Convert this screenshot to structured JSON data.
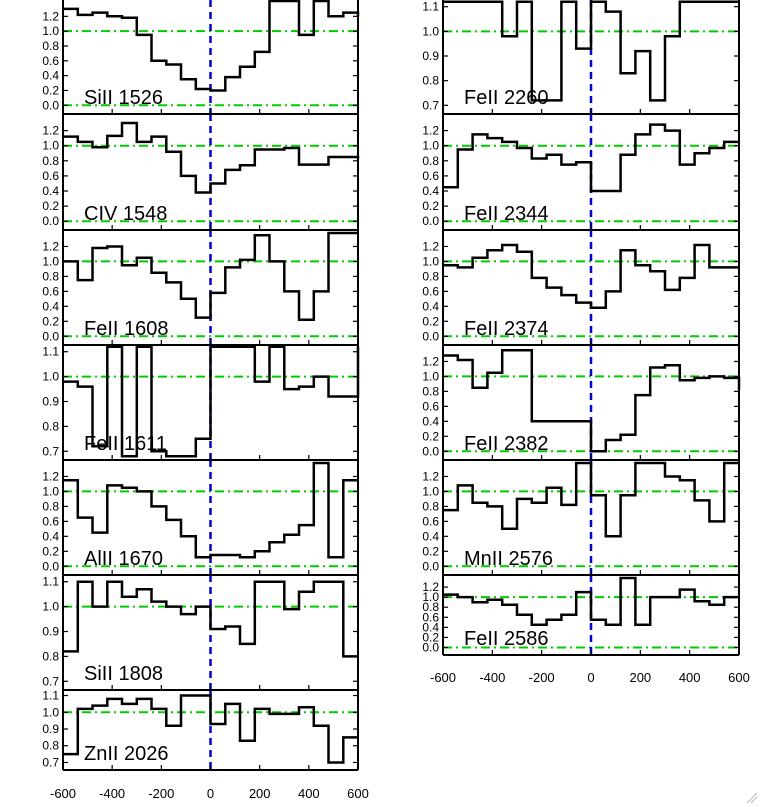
{
  "chart_data": {
    "type": "line",
    "title": "",
    "xlabel": "",
    "ylabel": "",
    "x_ticks": [
      -600,
      -400,
      -200,
      0,
      200,
      400,
      600
    ],
    "xlim": [
      -600,
      600
    ],
    "colors": {
      "spectrum": "#000000",
      "continuum": "#00cc00",
      "zero_velocity": "#0000cc"
    },
    "reference_lines": {
      "continuum": 1.0,
      "zero": 0.0,
      "velocity": 0
    },
    "panels": [
      {
        "column": "left",
        "label": "SiII 1526",
        "ylim": [
          -0.05,
          1.38
        ],
        "ticks": [
          {
            "v": 0.0,
            "t": "0.0"
          },
          {
            "v": 0.2,
            "t": "0.2"
          },
          {
            "v": 0.4,
            "t": "0.4"
          },
          {
            "v": 0.6,
            "t": "0.6"
          },
          {
            "v": 0.8,
            "t": "0.8"
          },
          {
            "v": 1.0,
            "t": "1.0"
          },
          {
            "v": 1.2,
            "t": "1.2"
          }
        ],
        "ref_levels": [
          1.0,
          0.0
        ],
        "x": [
          -600,
          -540,
          -480,
          -420,
          -360,
          -300,
          -240,
          -180,
          -120,
          -60,
          0,
          60,
          120,
          180,
          240,
          300,
          360,
          420,
          480,
          540,
          600
        ],
        "y": [
          1.3,
          1.22,
          1.25,
          1.2,
          1.18,
          0.95,
          0.6,
          0.55,
          0.35,
          0.22,
          0.2,
          0.38,
          0.52,
          0.72,
          1.45,
          1.45,
          0.95,
          1.45,
          1.2,
          1.25,
          1.2
        ]
      },
      {
        "column": "left",
        "label": "CIV 1548",
        "ylim": [
          -0.05,
          1.38
        ],
        "ticks": [
          {
            "v": 0.0,
            "t": "0.0"
          },
          {
            "v": 0.2,
            "t": "0.2"
          },
          {
            "v": 0.4,
            "t": "0.4"
          },
          {
            "v": 0.6,
            "t": "0.6"
          },
          {
            "v": 0.8,
            "t": "0.8"
          },
          {
            "v": 1.0,
            "t": "1.0"
          },
          {
            "v": 1.2,
            "t": "1.2"
          }
        ],
        "ref_levels": [
          1.0,
          0.0
        ],
        "x": [
          -600,
          -540,
          -480,
          -420,
          -360,
          -300,
          -240,
          -180,
          -120,
          -60,
          0,
          60,
          120,
          180,
          240,
          300,
          360,
          420,
          480,
          540,
          600
        ],
        "y": [
          1.12,
          1.05,
          0.98,
          1.13,
          1.3,
          1.05,
          1.12,
          0.92,
          0.6,
          0.38,
          0.5,
          0.68,
          0.74,
          0.95,
          0.95,
          0.97,
          0.75,
          0.75,
          0.85,
          0.85,
          0.82
        ]
      },
      {
        "column": "left",
        "label": "FeII 1608",
        "ylim": [
          -0.05,
          1.38
        ],
        "ticks": [
          {
            "v": 0.0,
            "t": "0.0"
          },
          {
            "v": 0.2,
            "t": "0.2"
          },
          {
            "v": 0.4,
            "t": "0.4"
          },
          {
            "v": 0.6,
            "t": "0.6"
          },
          {
            "v": 0.8,
            "t": "0.8"
          },
          {
            "v": 1.0,
            "t": "1.0"
          },
          {
            "v": 1.2,
            "t": "1.2"
          }
        ],
        "ref_levels": [
          1.0,
          0.0
        ],
        "x": [
          -600,
          -540,
          -480,
          -420,
          -360,
          -300,
          -240,
          -180,
          -120,
          -60,
          0,
          60,
          120,
          180,
          240,
          300,
          360,
          420,
          480,
          540,
          600
        ],
        "y": [
          1.0,
          0.75,
          1.18,
          1.2,
          0.95,
          1.05,
          0.85,
          0.72,
          0.5,
          0.25,
          0.58,
          0.92,
          1.02,
          1.35,
          1.0,
          0.6,
          0.22,
          0.6,
          1.38,
          1.38,
          1.38
        ]
      },
      {
        "column": "left",
        "label": "FeII 1611",
        "ylim": [
          0.685,
          1.115
        ],
        "ticks": [
          {
            "v": 0.7,
            "t": "0.7"
          },
          {
            "v": 0.8,
            "t": "0.8"
          },
          {
            "v": 0.9,
            "t": "0.9"
          },
          {
            "v": 1.0,
            "t": "1.0"
          },
          {
            "v": 1.1,
            "t": "1.1"
          }
        ],
        "ref_levels": [
          1.0
        ],
        "x": [
          -600,
          -540,
          -480,
          -420,
          -360,
          -300,
          -240,
          -180,
          -120,
          -60,
          0,
          60,
          120,
          180,
          240,
          300,
          360,
          420,
          480,
          540,
          600
        ],
        "y": [
          0.98,
          0.96,
          0.72,
          1.12,
          0.68,
          1.12,
          0.7,
          0.68,
          0.68,
          0.75,
          1.12,
          1.12,
          1.12,
          0.98,
          1.12,
          0.95,
          0.96,
          1.0,
          0.92,
          0.92,
          1.12
        ]
      },
      {
        "column": "left",
        "label": "AlII 1670",
        "ylim": [
          -0.05,
          1.38
        ],
        "ticks": [
          {
            "v": 0.0,
            "t": "0.0"
          },
          {
            "v": 0.2,
            "t": "0.2"
          },
          {
            "v": 0.4,
            "t": "0.4"
          },
          {
            "v": 0.6,
            "t": "0.6"
          },
          {
            "v": 0.8,
            "t": "0.8"
          },
          {
            "v": 1.0,
            "t": "1.0"
          },
          {
            "v": 1.2,
            "t": "1.2"
          }
        ],
        "ref_levels": [
          1.0,
          0.0
        ],
        "x": [
          -600,
          -540,
          -480,
          -420,
          -360,
          -300,
          -240,
          -180,
          -120,
          -60,
          0,
          60,
          120,
          180,
          240,
          300,
          360,
          420,
          480,
          540,
          600
        ],
        "y": [
          1.15,
          0.65,
          0.45,
          1.08,
          1.05,
          1.0,
          0.8,
          0.62,
          0.4,
          0.12,
          0.15,
          0.15,
          0.12,
          0.2,
          0.32,
          0.42,
          0.55,
          1.38,
          0.12,
          1.15,
          1.15
        ]
      },
      {
        "column": "left",
        "label": "SiII 1808",
        "ylim": [
          0.685,
          1.115
        ],
        "ticks": [
          {
            "v": 0.7,
            "t": "0.7"
          },
          {
            "v": 0.8,
            "t": "0.8"
          },
          {
            "v": 0.9,
            "t": "0.9"
          },
          {
            "v": 1.0,
            "t": "1.0"
          },
          {
            "v": 1.1,
            "t": "1.1"
          }
        ],
        "ref_levels": [
          1.0
        ],
        "x": [
          -600,
          -540,
          -480,
          -420,
          -360,
          -300,
          -240,
          -180,
          -120,
          -60,
          0,
          60,
          120,
          180,
          240,
          300,
          360,
          420,
          480,
          540,
          600
        ],
        "y": [
          0.82,
          1.1,
          1.0,
          1.1,
          1.04,
          1.07,
          1.02,
          1.0,
          0.97,
          1.0,
          0.91,
          0.92,
          0.85,
          1.1,
          1.1,
          0.99,
          1.06,
          1.1,
          1.1,
          0.8,
          0.8
        ]
      },
      {
        "column": "left",
        "label": "ZnII 2026",
        "ylim": [
          0.685,
          1.115
        ],
        "ticks": [
          {
            "v": 0.7,
            "t": "0.7"
          },
          {
            "v": 0.8,
            "t": "0.8"
          },
          {
            "v": 0.9,
            "t": "0.9"
          },
          {
            "v": 1.0,
            "t": "1.0"
          },
          {
            "v": 1.1,
            "t": "1.1"
          }
        ],
        "ref_levels": [
          1.0
        ],
        "x": [
          -600,
          -540,
          -480,
          -420,
          -360,
          -300,
          -240,
          -180,
          -120,
          -60,
          0,
          60,
          120,
          180,
          240,
          300,
          360,
          420,
          480,
          540,
          600
        ],
        "y": [
          0.75,
          1.02,
          1.04,
          1.08,
          1.05,
          1.08,
          1.02,
          0.92,
          1.1,
          1.1,
          0.93,
          1.05,
          0.83,
          1.02,
          0.99,
          0.99,
          1.03,
          0.92,
          0.7,
          0.85,
          0.85
        ]
      },
      {
        "column": "right",
        "label": "FeII 2260",
        "ylim": [
          0.685,
          1.115
        ],
        "ticks": [
          {
            "v": 0.7,
            "t": "0.7"
          },
          {
            "v": 0.8,
            "t": "0.8"
          },
          {
            "v": 0.9,
            "t": "0.9"
          },
          {
            "v": 1.0,
            "t": "1.0"
          },
          {
            "v": 1.1,
            "t": "1.1"
          }
        ],
        "ref_levels": [
          1.0
        ],
        "x": [
          -600,
          -540,
          -480,
          -420,
          -360,
          -300,
          -240,
          -180,
          -120,
          -60,
          0,
          60,
          120,
          180,
          240,
          300,
          360,
          420,
          480,
          540,
          600
        ],
        "y": [
          1.12,
          1.12,
          1.12,
          1.12,
          0.98,
          1.12,
          0.72,
          0.72,
          1.12,
          0.93,
          1.12,
          1.08,
          0.83,
          0.92,
          0.72,
          0.98,
          1.12,
          1.12,
          1.12,
          1.12,
          1.12
        ]
      },
      {
        "column": "right",
        "label": "FeII 2344",
        "ylim": [
          -0.05,
          1.38
        ],
        "ticks": [
          {
            "v": 0.0,
            "t": "0.0"
          },
          {
            "v": 0.2,
            "t": "0.2"
          },
          {
            "v": 0.4,
            "t": "0.4"
          },
          {
            "v": 0.6,
            "t": "0.6"
          },
          {
            "v": 0.8,
            "t": "0.8"
          },
          {
            "v": 1.0,
            "t": "1.0"
          },
          {
            "v": 1.2,
            "t": "1.2"
          }
        ],
        "ref_levels": [
          1.0,
          0.0
        ],
        "x": [
          -600,
          -540,
          -480,
          -420,
          -360,
          -300,
          -240,
          -180,
          -120,
          -60,
          0,
          60,
          120,
          180,
          240,
          300,
          360,
          420,
          480,
          540,
          600
        ],
        "y": [
          0.45,
          0.95,
          1.15,
          1.1,
          1.05,
          0.97,
          0.83,
          0.88,
          0.75,
          0.78,
          0.4,
          0.4,
          0.88,
          1.15,
          1.28,
          1.2,
          0.75,
          0.9,
          0.97,
          1.05,
          1.05
        ]
      },
      {
        "column": "right",
        "label": "FeII 2374",
        "ylim": [
          -0.05,
          1.38
        ],
        "ticks": [
          {
            "v": 0.0,
            "t": "0.0"
          },
          {
            "v": 0.2,
            "t": "0.2"
          },
          {
            "v": 0.4,
            "t": "0.4"
          },
          {
            "v": 0.6,
            "t": "0.6"
          },
          {
            "v": 0.8,
            "t": "0.8"
          },
          {
            "v": 1.0,
            "t": "1.0"
          },
          {
            "v": 1.2,
            "t": "1.2"
          }
        ],
        "ref_levels": [
          1.0,
          0.0
        ],
        "x": [
          -600,
          -540,
          -480,
          -420,
          -360,
          -300,
          -240,
          -180,
          -120,
          -60,
          0,
          60,
          120,
          180,
          240,
          300,
          360,
          420,
          480,
          540,
          600
        ],
        "y": [
          0.95,
          0.92,
          1.05,
          1.15,
          1.22,
          1.13,
          0.78,
          0.65,
          0.55,
          0.45,
          0.38,
          0.6,
          1.15,
          0.95,
          0.87,
          0.62,
          0.78,
          1.22,
          0.92,
          0.92,
          0.92
        ]
      },
      {
        "column": "right",
        "label": "FeII 2382",
        "ylim": [
          -0.05,
          1.38
        ],
        "ticks": [
          {
            "v": 0.0,
            "t": "0.0"
          },
          {
            "v": 0.2,
            "t": "0.2"
          },
          {
            "v": 0.4,
            "t": "0.4"
          },
          {
            "v": 0.6,
            "t": "0.6"
          },
          {
            "v": 0.8,
            "t": "0.8"
          },
          {
            "v": 1.0,
            "t": "1.0"
          },
          {
            "v": 1.2,
            "t": "1.2"
          }
        ],
        "ref_levels": [
          1.0,
          0.0
        ],
        "x": [
          -600,
          -540,
          -480,
          -420,
          -360,
          -300,
          -240,
          -180,
          -120,
          -60,
          0,
          60,
          120,
          180,
          240,
          300,
          360,
          420,
          480,
          540,
          600
        ],
        "y": [
          1.28,
          1.22,
          0.85,
          1.05,
          1.35,
          1.35,
          0.4,
          0.4,
          0.4,
          0.4,
          0.0,
          0.15,
          0.22,
          0.75,
          1.12,
          1.15,
          0.95,
          0.98,
          1.0,
          0.98,
          0.82
        ]
      },
      {
        "column": "right",
        "label": "MnII 2576",
        "ylim": [
          -0.05,
          1.38
        ],
        "ticks": [
          {
            "v": 0.0,
            "t": "0.0"
          },
          {
            "v": 0.2,
            "t": "0.2"
          },
          {
            "v": 0.4,
            "t": "0.4"
          },
          {
            "v": 0.6,
            "t": "0.6"
          },
          {
            "v": 0.8,
            "t": "0.8"
          },
          {
            "v": 1.0,
            "t": "1.0"
          },
          {
            "v": 1.2,
            "t": "1.2"
          }
        ],
        "ref_levels": [
          1.0,
          0.0
        ],
        "x": [
          -600,
          -540,
          -480,
          -420,
          -360,
          -300,
          -240,
          -180,
          -120,
          -60,
          0,
          60,
          120,
          180,
          240,
          300,
          360,
          420,
          480,
          540,
          600
        ],
        "y": [
          0.75,
          1.08,
          0.85,
          0.8,
          0.5,
          0.9,
          0.85,
          1.05,
          0.82,
          1.38,
          0.95,
          0.4,
          0.95,
          1.38,
          1.38,
          1.2,
          1.15,
          0.88,
          0.6,
          1.38,
          1.38
        ]
      },
      {
        "column": "right",
        "label": "FeII 2586",
        "ylim": [
          -0.05,
          1.38
        ],
        "ticks": [
          {
            "v": 0.0,
            "t": "0.0"
          },
          {
            "v": 0.2,
            "t": "0.2"
          },
          {
            "v": 0.4,
            "t": "0.4"
          },
          {
            "v": 0.6,
            "t": "0.6"
          },
          {
            "v": 0.8,
            "t": "0.8"
          },
          {
            "v": 1.0,
            "t": "1.0"
          },
          {
            "v": 1.2,
            "t": "1.2"
          }
        ],
        "ref_levels": [
          1.0,
          0.0
        ],
        "x": [
          -600,
          -540,
          -480,
          -420,
          -360,
          -300,
          -240,
          -180,
          -120,
          -60,
          0,
          60,
          120,
          180,
          240,
          300,
          360,
          420,
          480,
          540,
          600
        ],
        "y": [
          1.05,
          1.0,
          0.9,
          0.95,
          0.85,
          0.65,
          0.45,
          0.55,
          0.65,
          1.1,
          0.55,
          0.45,
          1.38,
          0.45,
          1.0,
          1.0,
          1.15,
          0.92,
          0.85,
          1.0,
          1.0
        ]
      }
    ]
  }
}
